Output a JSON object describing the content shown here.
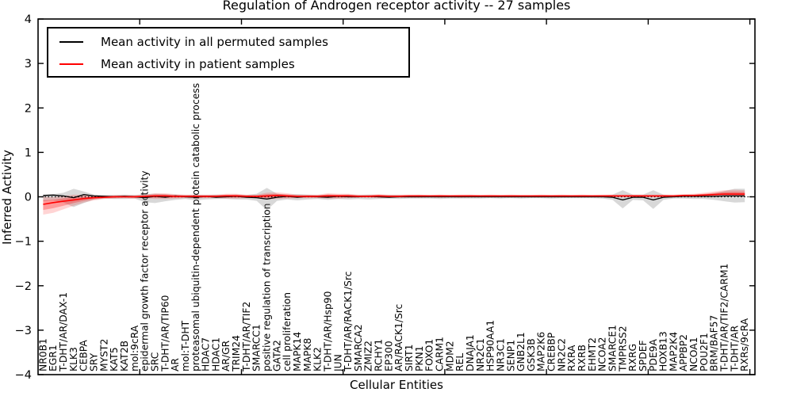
{
  "figure": {
    "title": "Regulation of Androgen receptor activity -- 27 samples",
    "sample_count": "27"
  },
  "legend": {
    "entries": [
      {
        "label": "Mean activity in all permuted samples",
        "color": "#000000"
      },
      {
        "label": "Mean activity in patient samples",
        "color": "#ff0000"
      }
    ],
    "position": "upper left"
  },
  "colors": {
    "permuted_line": "#000000",
    "permuted_band": "rgba(125,125,125,0.30)",
    "patient_line": "#ff0000",
    "patient_band_outer": "rgba(255,0,0,0.17)",
    "patient_band_inner": "rgba(255,0,0,0.28)",
    "zero_reference_line": "#000000",
    "background": "#ffffff"
  },
  "chart_data": {
    "type": "line",
    "title": "Regulation of Androgen receptor activity -- 27 samples",
    "xlabel": "Cellular Entities",
    "ylabel": "Inferred Activity",
    "ylim": [
      -4,
      4
    ],
    "y_ticks": [
      "4",
      "3",
      "2",
      "1",
      "0",
      "−1",
      "−2",
      "−3",
      "−4"
    ],
    "x_tick_positions": [
      10,
      20,
      30,
      40,
      50,
      60,
      70
    ],
    "grid": false,
    "legend_position": "upper left",
    "zero_line": {
      "style": "dotted",
      "y": 0
    },
    "categories": [
      "NR0B1",
      "EGR1",
      "T-DHT/AR/DAX-1",
      "KLK3",
      "CEBPA",
      "SRY",
      "MYST2",
      "KAT5",
      "KAT2B",
      "mol:9cRA",
      "epidermal growth factor receptor activity",
      "SRC",
      "T-DHT/AR/TIP60",
      "AR",
      "mol:T-DHT",
      "proteasomal ubiquitin-dependent protein catabolic process",
      "HDAC7",
      "HDAC1",
      "AR/GR",
      "TRIM24",
      "T-DHT/AR/TIF2",
      "SMARCC1",
      "positive regulation of transcription",
      "GATA2",
      "cell proliferation",
      "MAPK14",
      "MAPK8",
      "KLK2",
      "T-DHT/AR/Hsp90",
      "JUN",
      "T-DHT/AR/RACK1/Src",
      "SMARCA2",
      "ZMIZ2",
      "RCHY1",
      "EP300",
      "AR/RACK1/Src",
      "SIRT1",
      "PKN1",
      "FOXO1",
      "CARM1",
      "MDM2",
      "REL",
      "DNAJA1",
      "NR2C1",
      "HSP90AA1",
      "NR3C1",
      "SENP1",
      "GNB2L1",
      "GSK3B",
      "MAP2K6",
      "CREBBP",
      "NR2C2",
      "RXRA",
      "RXRB",
      "EHMT2",
      "NCOA2",
      "SMARCE1",
      "TMPRSS2",
      "RXRG",
      "SPDEF",
      "PDE9A",
      "HOXB13",
      "MAP2K4",
      "APPBP2",
      "NCOA1",
      "POU2F1",
      "BRM/BAF57",
      "T-DHT/AR/TIF2/CARM1",
      "T-DHT/AR",
      "RXRs/9cRA"
    ],
    "series": [
      {
        "name": "Mean activity in all permuted samples",
        "color": "#000000",
        "values": [
          0.03,
          0.04,
          0.02,
          -0.02,
          0.05,
          0.02,
          0.01,
          0,
          0.01,
          0,
          -0.02,
          0.01,
          -0.01,
          0.02,
          0,
          -0.01,
          0.01,
          -0.01,
          0,
          0.01,
          -0.01,
          -0.02,
          -0.05,
          -0.01,
          0.01,
          -0.01,
          0.01,
          0,
          -0.01,
          0.01,
          0,
          0,
          0.01,
          0,
          -0.01,
          0,
          0,
          0,
          0,
          0,
          0,
          0,
          0,
          0,
          0,
          0,
          0,
          0,
          0,
          0,
          0,
          0,
          0,
          0,
          0,
          0,
          -0.01,
          -0.07,
          -0.01,
          -0.01,
          -0.07,
          -0.01,
          0,
          0.01,
          0.01,
          0.01,
          0.01,
          0.02,
          0.02,
          0.02
        ],
        "band_upper": [
          0.05,
          0.06,
          0.09,
          0.18,
          0.12,
          0.05,
          0.04,
          0.04,
          0.05,
          0.04,
          0.06,
          0.07,
          0.06,
          0.05,
          0.04,
          0.05,
          0.04,
          0.05,
          0.04,
          0.05,
          0.04,
          0.07,
          0.2,
          0.07,
          0.05,
          0.06,
          0.05,
          0.04,
          0.05,
          0.04,
          0.05,
          0.04,
          0.05,
          0.04,
          0.04,
          0.04,
          0.03,
          0.04,
          0.03,
          0.04,
          0.03,
          0.03,
          0.04,
          0.03,
          0.03,
          0.03,
          0.03,
          0.03,
          0.03,
          0.03,
          0.03,
          0.03,
          0.03,
          0.03,
          0.03,
          0.03,
          0.05,
          0.15,
          0.05,
          0.05,
          0.15,
          0.05,
          0.03,
          0.04,
          0.04,
          0.05,
          0.08,
          0.13,
          0.18,
          0.18
        ],
        "band_lower": [
          -0.1,
          -0.08,
          -0.13,
          -0.23,
          -0.14,
          -0.06,
          -0.04,
          -0.05,
          -0.05,
          -0.04,
          -0.12,
          -0.14,
          -0.1,
          -0.07,
          -0.05,
          -0.08,
          -0.06,
          -0.05,
          -0.05,
          -0.06,
          -0.06,
          -0.09,
          -0.3,
          -0.09,
          -0.06,
          -0.08,
          -0.06,
          -0.05,
          -0.07,
          -0.05,
          -0.06,
          -0.05,
          -0.06,
          -0.05,
          -0.04,
          -0.05,
          -0.04,
          -0.04,
          -0.04,
          -0.05,
          -0.04,
          -0.04,
          -0.04,
          -0.04,
          -0.03,
          -0.04,
          -0.03,
          -0.04,
          -0.03,
          -0.03,
          -0.04,
          -0.03,
          -0.03,
          -0.03,
          -0.03,
          -0.04,
          -0.07,
          -0.26,
          -0.07,
          -0.08,
          -0.27,
          -0.07,
          -0.04,
          -0.04,
          -0.05,
          -0.05,
          -0.07,
          -0.1,
          -0.13,
          -0.12
        ]
      },
      {
        "name": "Mean activity in patient samples",
        "color": "#ff0000",
        "values": [
          -0.17,
          -0.13,
          -0.1,
          -0.07,
          -0.04,
          -0.02,
          -0.01,
          0,
          0,
          0,
          0.01,
          0.02,
          0.02,
          0.01,
          0.01,
          0.01,
          0.01,
          0.01,
          0.02,
          0.02,
          0.01,
          0.01,
          0.02,
          0.03,
          0.02,
          0.01,
          0.01,
          0.01,
          0.02,
          0.02,
          0.02,
          0.01,
          0.01,
          0.02,
          0.01,
          0.01,
          0.02,
          0.02,
          0.02,
          0.02,
          0.02,
          0.02,
          0.02,
          0.02,
          0.02,
          0.02,
          0.02,
          0.02,
          0.02,
          0.02,
          0.02,
          0.02,
          0.02,
          0.02,
          0.02,
          0.02,
          0.02,
          0.02,
          0.02,
          0.02,
          0.02,
          0.02,
          0.02,
          0.03,
          0.03,
          0.04,
          0.05,
          0.06,
          0.06,
          0.06
        ],
        "band_upper": [
          0.0,
          -0.01,
          0.02,
          0.05,
          0.04,
          0.03,
          0.03,
          0.04,
          0.04,
          0.04,
          0.05,
          0.08,
          0.08,
          0.06,
          0.05,
          0.05,
          0.05,
          0.05,
          0.07,
          0.07,
          0.05,
          0.05,
          0.09,
          0.1,
          0.08,
          0.05,
          0.05,
          0.05,
          0.08,
          0.07,
          0.07,
          0.05,
          0.05,
          0.06,
          0.05,
          0.05,
          0.05,
          0.05,
          0.04,
          0.05,
          0.04,
          0.05,
          0.05,
          0.04,
          0.05,
          0.04,
          0.05,
          0.04,
          0.04,
          0.05,
          0.04,
          0.05,
          0.04,
          0.05,
          0.04,
          0.05,
          0.05,
          0.05,
          0.05,
          0.05,
          0.05,
          0.05,
          0.05,
          0.06,
          0.07,
          0.09,
          0.12,
          0.15,
          0.16,
          0.15
        ],
        "band_lower": [
          -0.4,
          -0.36,
          -0.28,
          -0.2,
          -0.13,
          -0.08,
          -0.05,
          -0.04,
          -0.03,
          -0.04,
          -0.03,
          -0.05,
          -0.05,
          -0.04,
          -0.03,
          -0.04,
          -0.03,
          -0.03,
          -0.04,
          -0.04,
          -0.03,
          -0.03,
          -0.06,
          -0.05,
          -0.04,
          -0.03,
          -0.03,
          -0.03,
          -0.04,
          -0.04,
          -0.03,
          -0.02,
          -0.02,
          -0.03,
          -0.02,
          -0.02,
          -0.02,
          -0.02,
          -0.01,
          -0.02,
          -0.01,
          -0.02,
          -0.01,
          -0.01,
          -0.01,
          -0.01,
          -0.01,
          -0.01,
          -0.01,
          -0.01,
          -0.01,
          -0.01,
          -0.01,
          -0.01,
          -0.01,
          -0.01,
          -0.01,
          -0.01,
          -0.01,
          -0.01,
          -0.01,
          -0.01,
          0,
          0,
          0,
          0.01,
          0.01,
          0.02,
          0.01,
          0
        ]
      }
    ]
  }
}
